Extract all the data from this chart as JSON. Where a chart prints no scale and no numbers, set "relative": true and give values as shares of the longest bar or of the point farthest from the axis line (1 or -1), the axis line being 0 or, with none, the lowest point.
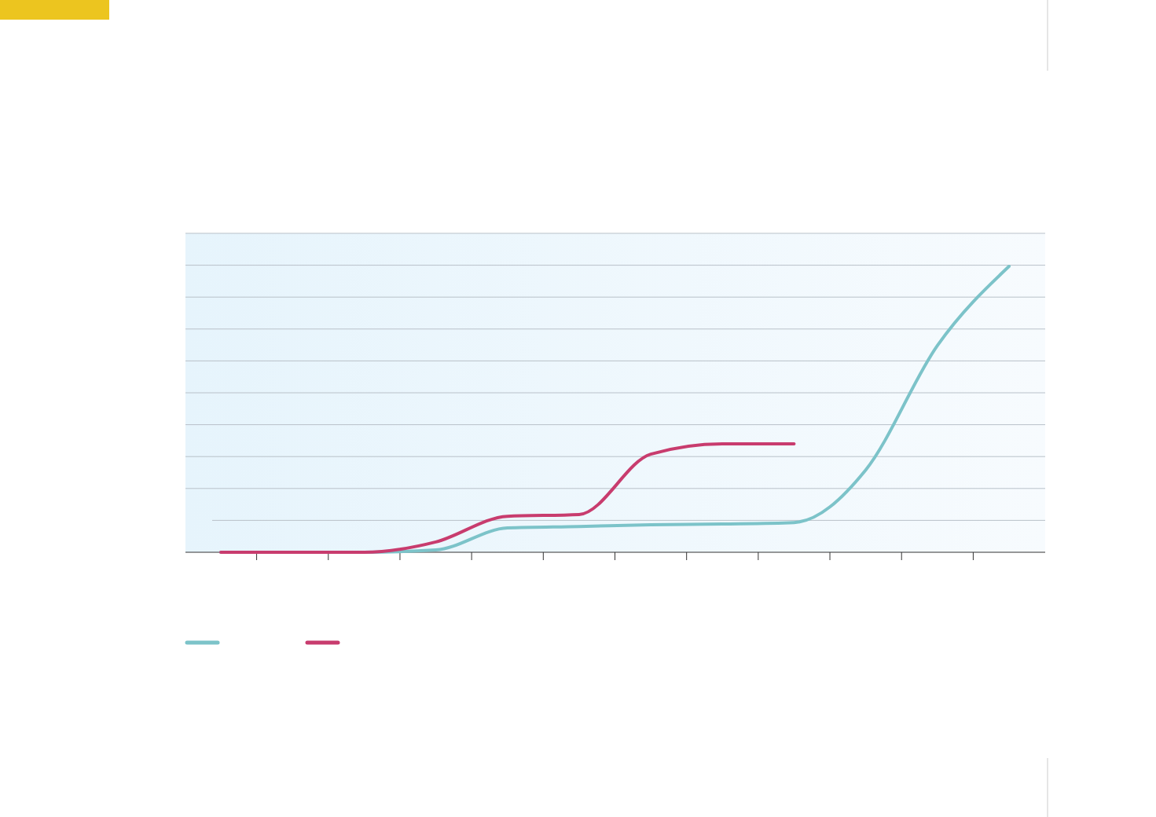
{
  "chart_data": {
    "type": "line",
    "relative": true,
    "categories": [
      null,
      null,
      null,
      null,
      null,
      null,
      null,
      null,
      null,
      null,
      null,
      null
    ],
    "series": [
      {
        "color": "#7cc3c9",
        "values": [
          0,
          0,
          0,
          0.008,
          0.085,
          0.09,
          0.096,
          0.099,
          0.104,
          0.288,
          0.723,
          1
        ]
      },
      {
        "color": "#c83c6e",
        "values": [
          0,
          0,
          0,
          0.036,
          0.126,
          0.132,
          0.343,
          0.379,
          0.379,
          null,
          null,
          null
        ]
      }
    ],
    "grid": "y",
    "line_style": "solid",
    "marker": "none"
  }
}
